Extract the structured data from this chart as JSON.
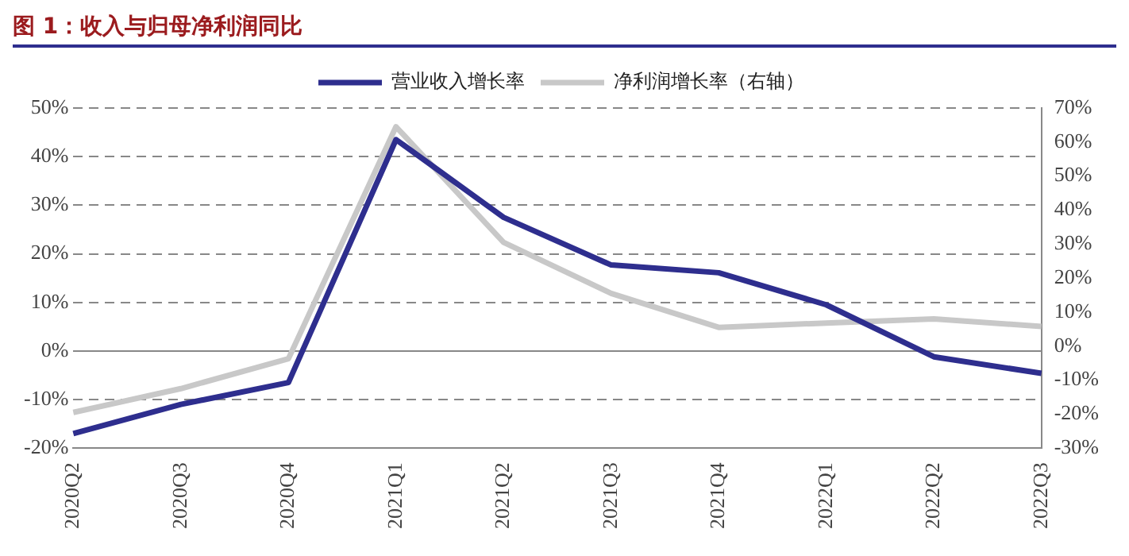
{
  "chart_data": {
    "type": "line",
    "title": "图 1：收入与归母净利润同比",
    "categories": [
      "2020Q2",
      "2020Q3",
      "2020Q4",
      "2021Q1",
      "2021Q2",
      "2021Q3",
      "2021Q4",
      "2022Q1",
      "2022Q2",
      "2022Q3"
    ],
    "series": [
      {
        "name": "营业收入增长率",
        "color": "#2e2e8e",
        "values": [
          -17,
          -11,
          -6.5,
          43.5,
          27.5,
          17.7,
          16.1,
          9.5,
          -1.2,
          -4.6
        ]
      },
      {
        "name": "净利润增长率（右轴）",
        "color": "#c8c8c8",
        "axis": "y2",
        "values": [
          -19.5,
          -12.5,
          -3.7,
          64.5,
          30.5,
          15.5,
          5.5,
          6.8,
          8,
          5.8
        ]
      }
    ],
    "ylim": [
      -20,
      50
    ],
    "yticks": [
      {
        "value": -20,
        "label": "-20%"
      },
      {
        "value": -10,
        "label": "-10%"
      },
      {
        "value": 0,
        "label": "0%"
      },
      {
        "value": 10,
        "label": "10%"
      },
      {
        "value": 20,
        "label": "20%"
      },
      {
        "value": 30,
        "label": "30%"
      },
      {
        "value": 40,
        "label": "40%"
      },
      {
        "value": 50,
        "label": "50%"
      }
    ],
    "y2lim": [
      -30,
      70
    ],
    "y2ticks": [
      {
        "value": -30,
        "label": "-30%"
      },
      {
        "value": -20,
        "label": "-20%"
      },
      {
        "value": -10,
        "label": "-10%"
      },
      {
        "value": 0,
        "label": "0%"
      },
      {
        "value": 10,
        "label": "10%"
      },
      {
        "value": 20,
        "label": "20%"
      },
      {
        "value": 30,
        "label": "30%"
      },
      {
        "value": 40,
        "label": "40%"
      },
      {
        "value": 50,
        "label": "50%"
      },
      {
        "value": 60,
        "label": "60%"
      },
      {
        "value": 70,
        "label": "70%"
      }
    ],
    "grid": "y",
    "legend": "top",
    "marker": "none",
    "line_style": "solid"
  }
}
